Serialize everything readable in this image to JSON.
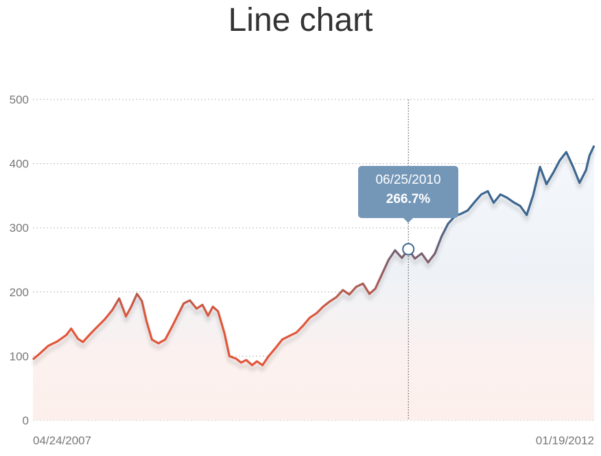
{
  "chart_data": {
    "type": "line",
    "title": "Line chart",
    "xlabel": "",
    "ylabel": "",
    "ylim": [
      0,
      500
    ],
    "y_ticks": [
      0,
      100,
      200,
      300,
      400,
      500
    ],
    "x_tick_labels": [
      "04/24/2007",
      "01/19/2012"
    ],
    "x_range": [
      "04/24/2007",
      "01/19/2012"
    ],
    "grid": true,
    "legend": "none",
    "colors": {
      "low": "#e0573a",
      "high": "#3c6690",
      "tooltip": "#7497b8"
    },
    "tooltip": {
      "date": "06/25/2010",
      "value": "266.7%"
    },
    "series": [
      {
        "points": [
          [
            "04/24/2007",
            95
          ],
          [
            "05/15/2007",
            104
          ],
          [
            "06/10/2007",
            116
          ],
          [
            "07/08/2007",
            123
          ],
          [
            "08/05/2007",
            133
          ],
          [
            "08/20/2007",
            143
          ],
          [
            "09/10/2007",
            127
          ],
          [
            "09/25/2007",
            122
          ],
          [
            "10/15/2007",
            133
          ],
          [
            "11/05/2007",
            144
          ],
          [
            "12/01/2007",
            157
          ],
          [
            "12/25/2007",
            172
          ],
          [
            "01/15/2008",
            190
          ],
          [
            "02/05/2008",
            162
          ],
          [
            "02/20/2008",
            176
          ],
          [
            "03/10/2008",
            197
          ],
          [
            "03/25/2008",
            186
          ],
          [
            "04/08/2008",
            155
          ],
          [
            "04/25/2008",
            126
          ],
          [
            "05/15/2008",
            120
          ],
          [
            "06/05/2008",
            126
          ],
          [
            "06/25/2008",
            145
          ],
          [
            "07/15/2008",
            165
          ],
          [
            "08/01/2008",
            182
          ],
          [
            "08/20/2008",
            187
          ],
          [
            "09/10/2008",
            174
          ],
          [
            "09/28/2008",
            180
          ],
          [
            "10/15/2008",
            163
          ],
          [
            "10/30/2008",
            177
          ],
          [
            "11/15/2008",
            170
          ],
          [
            "12/05/2008",
            135
          ],
          [
            "12/20/2008",
            100
          ],
          [
            "01/10/2009",
            96
          ],
          [
            "01/25/2009",
            90
          ],
          [
            "02/10/2009",
            94
          ],
          [
            "02/28/2009",
            86
          ],
          [
            "03/15/2009",
            92
          ],
          [
            "04/01/2009",
            86
          ],
          [
            "04/20/2009",
            100
          ],
          [
            "05/10/2009",
            112
          ],
          [
            "06/01/2009",
            126
          ],
          [
            "06/25/2009",
            132
          ],
          [
            "07/15/2009",
            137
          ],
          [
            "08/05/2009",
            148
          ],
          [
            "08/25/2009",
            160
          ],
          [
            "09/15/2009",
            167
          ],
          [
            "10/05/2009",
            177
          ],
          [
            "10/25/2009",
            185
          ],
          [
            "11/15/2009",
            192
          ],
          [
            "12/05/2009",
            203
          ],
          [
            "12/25/2009",
            196
          ],
          [
            "01/15/2010",
            208
          ],
          [
            "02/05/2010",
            213
          ],
          [
            "02/25/2010",
            197
          ],
          [
            "03/15/2010",
            205
          ],
          [
            "04/05/2010",
            228
          ],
          [
            "04/25/2010",
            250
          ],
          [
            "05/15/2010",
            265
          ],
          [
            "06/05/2010",
            253
          ],
          [
            "06/25/2010",
            266.7
          ],
          [
            "07/15/2010",
            252
          ],
          [
            "08/05/2010",
            260
          ],
          [
            "08/25/2010",
            246
          ],
          [
            "09/15/2010",
            260
          ],
          [
            "10/05/2010",
            286
          ],
          [
            "10/25/2010",
            306
          ],
          [
            "11/15/2010",
            318
          ],
          [
            "12/05/2010",
            322
          ],
          [
            "12/25/2010",
            327
          ],
          [
            "01/15/2011",
            340
          ],
          [
            "02/05/2011",
            352
          ],
          [
            "02/25/2011",
            357
          ],
          [
            "03/15/2011",
            339
          ],
          [
            "04/05/2011",
            352
          ],
          [
            "04/25/2011",
            347
          ],
          [
            "05/15/2011",
            340
          ],
          [
            "06/05/2011",
            334
          ],
          [
            "06/25/2011",
            320
          ],
          [
            "07/15/2011",
            351
          ],
          [
            "08/05/2011",
            395
          ],
          [
            "08/25/2011",
            368
          ],
          [
            "09/15/2011",
            386
          ],
          [
            "10/05/2011",
            405
          ],
          [
            "10/25/2011",
            418
          ],
          [
            "11/15/2011",
            395
          ],
          [
            "12/05/2011",
            370
          ],
          [
            "12/25/2011",
            390
          ],
          [
            "01/05/2012",
            413
          ],
          [
            "01/19/2012",
            428
          ]
        ]
      }
    ]
  }
}
